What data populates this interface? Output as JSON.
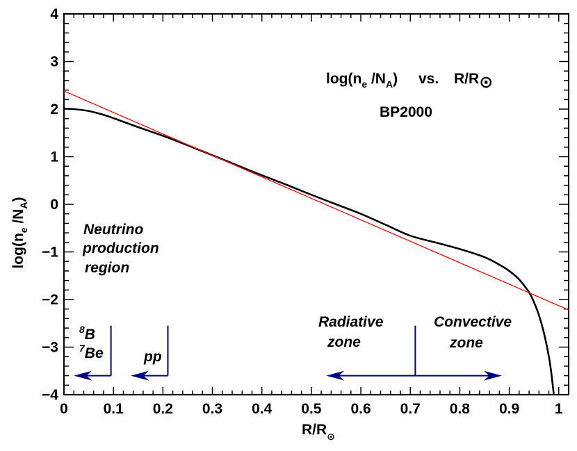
{
  "chart_data": {
    "type": "line",
    "title": "",
    "xlim": [
      0,
      1.02
    ],
    "ylim": [
      -4,
      4
    ],
    "grid": false,
    "x_ticks": [
      "0",
      "0.1",
      "0.2",
      "0.3",
      "0.4",
      "0.5",
      "0.6",
      "0.7",
      "0.8",
      "0.9",
      "1"
    ],
    "y_ticks": [
      "−4",
      "−3",
      "−2",
      "−1",
      "0",
      "1",
      "2",
      "3",
      "4"
    ],
    "xlabel": {
      "main": "R/R",
      "sub": "⊙"
    },
    "ylabel": {
      "lead": "log(n",
      "sub1": "e",
      "mid": " /N",
      "sub2": "A",
      "tail": ")"
    },
    "series": [
      {
        "line_color": "#000000",
        "x": [
          0.0,
          0.02,
          0.05,
          0.08,
          0.1,
          0.15,
          0.2,
          0.25,
          0.3,
          0.35,
          0.4,
          0.45,
          0.5,
          0.55,
          0.6,
          0.65,
          0.7,
          0.75,
          0.8,
          0.85,
          0.88,
          0.9,
          0.92,
          0.94,
          0.95,
          0.96,
          0.97,
          0.98,
          0.985,
          0.99
        ],
        "y": [
          2.01,
          2.0,
          1.96,
          1.88,
          1.81,
          1.62,
          1.44,
          1.24,
          1.03,
          0.82,
          0.61,
          0.41,
          0.2,
          0.0,
          -0.2,
          -0.43,
          -0.66,
          -0.8,
          -0.94,
          -1.11,
          -1.27,
          -1.4,
          -1.58,
          -1.85,
          -2.06,
          -2.33,
          -2.7,
          -3.2,
          -3.55,
          -4.0
        ]
      },
      {
        "line_color": "#ff0000",
        "x": [
          0.0,
          1.02
        ],
        "y": [
          2.38,
          -2.22
        ]
      }
    ],
    "annotations": {
      "main_title": {
        "lead": "log(n",
        "sub1": "e",
        "mid": " /N",
        "sub2": "A",
        "tail": ")",
        "vs": "vs.",
        "r": "R/R",
        "sun": "⊙"
      },
      "model": "BP2000",
      "neutrino": [
        "Neutrino",
        "production",
        "region"
      ],
      "b8": {
        "sup": "8",
        "text": "B"
      },
      "be7": {
        "sup": "7",
        "text": "Be"
      },
      "pp": "pp",
      "radiative": [
        "Radiative",
        "zone"
      ],
      "convective": [
        "Convective",
        "zone"
      ]
    },
    "markers": {
      "color": "#000080",
      "b8_boundary_x": 0.095,
      "pp_boundary_x": 0.21,
      "zone_boundary_x": 0.71,
      "arrow_y": -3.6,
      "b8_arrow_to_x": 0.02,
      "pp_arrow_to_x": 0.135,
      "radiative_arrow_to_x": 0.53,
      "convective_arrow_to_x": 0.885,
      "marker_top_y": -2.55
    }
  }
}
